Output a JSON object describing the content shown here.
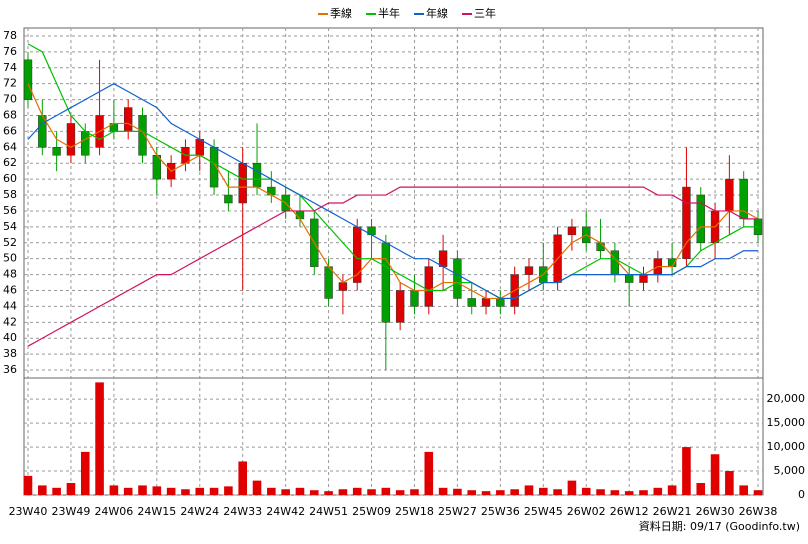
{
  "chart_data": {
    "type": "candlestick",
    "categories": [
      "23W40",
      null,
      null,
      "23W49",
      null,
      null,
      "24W06",
      null,
      null,
      "24W15",
      null,
      null,
      "24W24",
      null,
      null,
      "24W33",
      null,
      null,
      "24W42",
      null,
      null,
      "24W51",
      null,
      null,
      "25W09",
      null,
      null,
      "25W18",
      null,
      null,
      "25W27",
      null,
      null,
      "25W36",
      null,
      null,
      "25W45",
      null,
      null,
      "26W02",
      null,
      null,
      "26W12",
      null,
      null,
      "26W21",
      null,
      null,
      "26W30",
      null,
      null,
      "26W38"
    ],
    "open": [
      75,
      68,
      64,
      63,
      66,
      64,
      67,
      66,
      68,
      63,
      60,
      62,
      63,
      64,
      58,
      57,
      62,
      59,
      58,
      56,
      55,
      49,
      46,
      47,
      54,
      52,
      42,
      46,
      44,
      49,
      50,
      45,
      44,
      45,
      44,
      48,
      49,
      47,
      53,
      54,
      52,
      51,
      48,
      47,
      48,
      50,
      50,
      58,
      52,
      56,
      60,
      55
    ],
    "high": [
      76,
      70,
      66,
      68,
      67,
      75,
      70,
      70,
      69,
      64,
      63,
      65,
      66,
      65,
      61,
      64,
      67,
      61,
      59,
      58,
      56,
      50,
      48,
      55,
      55,
      53,
      47,
      48,
      50,
      53,
      51,
      47,
      46,
      46,
      49,
      50,
      52,
      54,
      55,
      56,
      55,
      52,
      49,
      49,
      51,
      52,
      64,
      59,
      57,
      63,
      61,
      56
    ],
    "low": [
      69,
      63,
      61,
      62,
      62,
      63,
      65,
      65,
      62,
      58,
      59,
      61,
      61,
      58,
      56,
      46,
      58,
      57,
      55,
      54,
      48,
      44,
      43,
      46,
      50,
      36,
      41,
      43,
      43,
      46,
      44,
      43,
      43,
      43,
      43,
      46,
      46,
      46,
      51,
      51,
      50,
      47,
      44,
      46,
      47,
      48,
      49,
      51,
      50,
      53,
      54,
      52
    ],
    "close": [
      70,
      64,
      63,
      67,
      63,
      68,
      66,
      69,
      63,
      60,
      62,
      64,
      65,
      59,
      57,
      62,
      59,
      58,
      56,
      55,
      49,
      45,
      47,
      54,
      53,
      42,
      46,
      44,
      49,
      51,
      45,
      44,
      45,
      44,
      48,
      49,
      47,
      53,
      54,
      52,
      51,
      48,
      47,
      48,
      50,
      49,
      59,
      52,
      56,
      60,
      55,
      53
    ],
    "up_color": "#e00000",
    "down_color": "#00a000",
    "ylim": [
      35,
      79
    ],
    "yticks": [
      36,
      38,
      40,
      42,
      44,
      46,
      48,
      50,
      52,
      54,
      56,
      58,
      60,
      62,
      64,
      66,
      68,
      70,
      72,
      74,
      76,
      78
    ],
    "series": [
      {
        "name": "季線",
        "color": "#e07000",
        "values": [
          72,
          68,
          65,
          64,
          65,
          66,
          67,
          67,
          66,
          63,
          61,
          62,
          63,
          62,
          59,
          59,
          59,
          58,
          57,
          55,
          52,
          49,
          47,
          48,
          50,
          50,
          47,
          46,
          46,
          47,
          47,
          46,
          45,
          45,
          46,
          47,
          48,
          50,
          52,
          53,
          52,
          50,
          48,
          48,
          49,
          49,
          52,
          54,
          54,
          56,
          56,
          55
        ]
      },
      {
        "name": "半年",
        "color": "#00c000",
        "values": [
          77,
          76,
          72,
          68,
          66,
          65,
          66,
          66,
          66,
          65,
          64,
          63,
          63,
          62,
          61,
          60,
          60,
          60,
          59,
          58,
          56,
          54,
          52,
          50,
          50,
          49,
          48,
          47,
          46,
          46,
          47,
          47,
          46,
          45,
          45,
          46,
          47,
          47,
          48,
          49,
          50,
          50,
          49,
          48,
          48,
          48,
          49,
          51,
          52,
          53,
          54,
          54
        ]
      },
      {
        "name": "年線",
        "color": "#1060d0",
        "values": [
          65,
          67,
          68,
          69,
          70,
          71,
          72,
          71,
          70,
          69,
          67,
          66,
          65,
          64,
          63,
          62,
          61,
          60,
          59,
          58,
          57,
          56,
          55,
          54,
          53,
          52,
          51,
          50,
          50,
          49,
          48,
          47,
          46,
          45,
          45,
          46,
          47,
          47,
          48,
          48,
          48,
          48,
          48,
          48,
          48,
          48,
          49,
          49,
          50,
          50,
          51,
          51
        ]
      },
      {
        "name": "三年",
        "color": "#d01060",
        "values": [
          39,
          40,
          41,
          42,
          43,
          44,
          45,
          46,
          47,
          48,
          48,
          49,
          50,
          51,
          52,
          53,
          54,
          55,
          56,
          56,
          56,
          57,
          57,
          58,
          58,
          58,
          59,
          59,
          59,
          59,
          59,
          59,
          59,
          59,
          59,
          59,
          59,
          59,
          59,
          59,
          59,
          59,
          59,
          59,
          58,
          58,
          57,
          57,
          56,
          56,
          55,
          55
        ]
      }
    ],
    "volume": [
      4000,
      2000,
      1500,
      2500,
      9000,
      23500,
      2000,
      1500,
      2000,
      1800,
      1500,
      1200,
      1500,
      1500,
      1800,
      7000,
      3000,
      1500,
      1200,
      1500,
      1000,
      800,
      1200,
      1500,
      1200,
      1500,
      1000,
      1200,
      9000,
      1500,
      1300,
      1000,
      800,
      1000,
      1200,
      2000,
      1500,
      1200,
      3000,
      1500,
      1200,
      1000,
      800,
      1000,
      1500,
      2000,
      10000,
      2500,
      8500,
      5000,
      2000,
      1000
    ],
    "volume_color": "#e00000",
    "y2lim": [
      0,
      24000
    ],
    "y2ticks": [
      0,
      {
        "value": 5000,
        "label": "5,000"
      },
      {
        "value": 10000,
        "label": "10,000"
      },
      {
        "value": 15000,
        "label": "15,000"
      },
      {
        "value": 20000,
        "label": "20,000"
      }
    ],
    "grid": true,
    "source": "資料日期: 09/17 (Goodinfo.tw)"
  }
}
